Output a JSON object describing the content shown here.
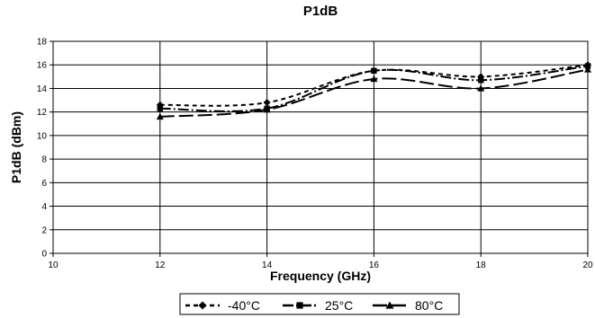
{
  "chart_data": {
    "type": "line",
    "title": "P1dB",
    "xlabel": "Frequency (GHz)",
    "ylabel": "P1dB (dBm)",
    "xlim": [
      10,
      20
    ],
    "ylim": [
      0,
      18
    ],
    "xticks": [
      10,
      12,
      14,
      16,
      18,
      20
    ],
    "yticks": [
      0,
      2,
      4,
      6,
      8,
      10,
      12,
      14,
      16,
      18
    ],
    "grid": true,
    "legend_position": "bottom",
    "series": [
      {
        "name": "-40°C",
        "marker": "diamond",
        "dash": "5,4",
        "x": [
          12,
          14,
          16,
          18,
          20
        ],
        "y": [
          12.6,
          12.8,
          15.5,
          15.0,
          16.0
        ]
      },
      {
        "name": "25°C",
        "marker": "square",
        "dash": "12,3,2,3",
        "x": [
          12,
          14,
          16,
          18,
          20
        ],
        "y": [
          12.3,
          12.3,
          15.5,
          14.7,
          15.9
        ]
      },
      {
        "name": "80°C",
        "marker": "triangle",
        "dash": "16,5",
        "x": [
          12,
          14,
          16,
          18,
          20
        ],
        "y": [
          11.6,
          12.2,
          14.8,
          14.0,
          15.6
        ]
      }
    ]
  }
}
